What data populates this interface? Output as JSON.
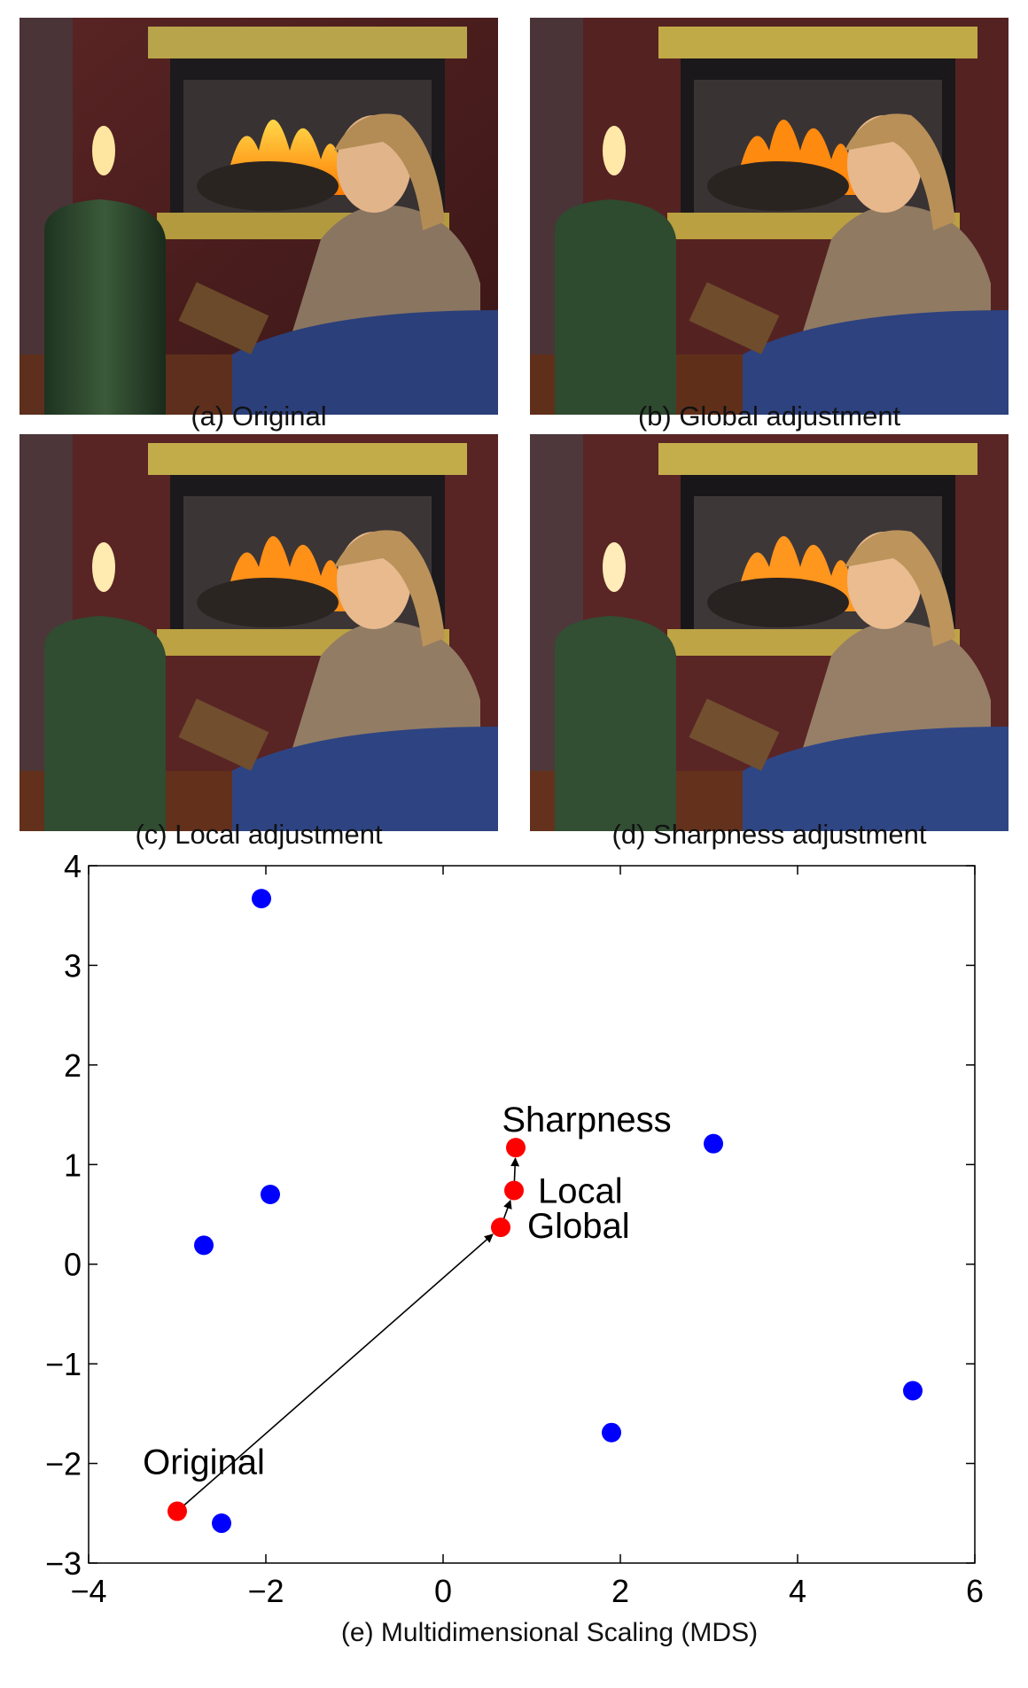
{
  "panels": [
    {
      "id": "a",
      "caption": "(a) Original"
    },
    {
      "id": "b",
      "caption": "(b) Global adjustment"
    },
    {
      "id": "c",
      "caption": "(c) Local adjustment"
    },
    {
      "id": "d",
      "caption": "(d) Sharpness adjustment"
    }
  ],
  "chart_data": {
    "type": "scatter",
    "caption": "(e) Multidimensional Scaling (MDS)",
    "xlim": [
      -4,
      6
    ],
    "ylim": [
      -3,
      4
    ],
    "xticks": [
      -4,
      -2,
      0,
      2,
      4,
      6
    ],
    "yticks": [
      -3,
      -2,
      -1,
      0,
      1,
      2,
      3,
      4
    ],
    "grid": false,
    "colors": {
      "other": "#0000ff",
      "adjusted": "#ff0000"
    },
    "series": [
      {
        "color": "#0000ff",
        "points": [
          [
            -2.05,
            3.67
          ],
          [
            -1.95,
            0.7
          ],
          [
            -2.7,
            0.19
          ],
          [
            -2.5,
            -2.6
          ],
          [
            1.9,
            -1.69
          ],
          [
            3.05,
            1.21
          ],
          [
            5.3,
            -1.27
          ]
        ]
      },
      {
        "color": "#ff0000",
        "points": [
          {
            "x": -3.0,
            "y": -2.48,
            "label": "Original"
          },
          {
            "x": 0.65,
            "y": 0.37,
            "label": "Global"
          },
          {
            "x": 0.8,
            "y": 0.74,
            "label": "Local"
          },
          {
            "x": 0.82,
            "y": 1.17,
            "label": "Sharpness"
          }
        ]
      }
    ],
    "arrows": [
      [
        "Original",
        "Global"
      ],
      [
        "Global",
        "Local"
      ],
      [
        "Local",
        "Sharpness"
      ]
    ]
  }
}
